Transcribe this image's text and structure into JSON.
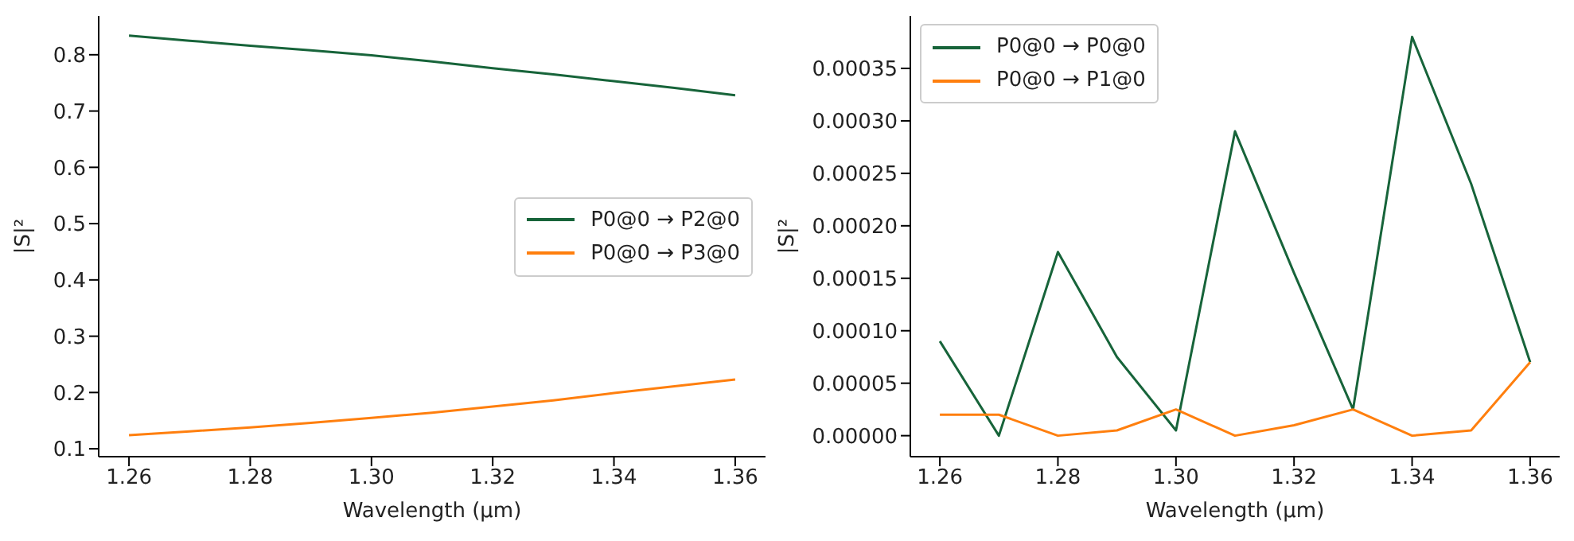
{
  "chart_data": [
    {
      "type": "line",
      "xlabel": "Wavelength (µm)",
      "ylabel": "|S|²",
      "x": [
        1.26,
        1.27,
        1.28,
        1.29,
        1.3,
        1.31,
        1.32,
        1.33,
        1.34,
        1.35,
        1.36
      ],
      "series": [
        {
          "name": "P0@0 → P2@0",
          "color": "#17643a",
          "values": [
            0.834,
            0.825,
            0.816,
            0.808,
            0.799,
            0.788,
            0.776,
            0.765,
            0.753,
            0.741,
            0.728
          ]
        },
        {
          "name": "P0@0 → P3@0",
          "color": "#ff7f0e",
          "values": [
            0.124,
            0.131,
            0.138,
            0.146,
            0.155,
            0.164,
            0.175,
            0.186,
            0.199,
            0.211,
            0.223
          ]
        }
      ],
      "xlim": [
        1.255,
        1.365
      ],
      "xticks": [
        {
          "value": 1.26,
          "label": "1.26"
        },
        {
          "value": 1.28,
          "label": "1.28"
        },
        {
          "value": 1.3,
          "label": "1.30"
        },
        {
          "value": 1.32,
          "label": "1.32"
        },
        {
          "value": 1.34,
          "label": "1.34"
        },
        {
          "value": 1.36,
          "label": "1.36"
        }
      ],
      "ylim": [
        0.086,
        0.869
      ],
      "yticks": [
        0.1,
        0.2,
        0.3,
        0.4,
        0.5,
        0.6,
        0.7,
        0.8
      ],
      "legend": "center right"
    },
    {
      "type": "line",
      "xlabel": "Wavelength (µm)",
      "ylabel": "|S|²",
      "x": [
        1.26,
        1.27,
        1.28,
        1.29,
        1.3,
        1.31,
        1.32,
        1.33,
        1.34,
        1.35,
        1.36
      ],
      "series": [
        {
          "name": "P0@0 → P0@0",
          "color": "#17643a",
          "values": [
            9e-05,
            0,
            0.000175,
            7.5e-05,
            5e-06,
            0.00029,
            0.000155,
            2.5e-05,
            0.00038,
            0.00024,
            7e-05
          ]
        },
        {
          "name": "P0@0 → P1@0",
          "color": "#ff7f0e",
          "values": [
            2e-05,
            2e-05,
            0,
            5e-06,
            2.5e-05,
            0,
            1e-05,
            2.5e-05,
            0,
            5e-06,
            7e-05
          ]
        }
      ],
      "xlim": [
        1.255,
        1.365
      ],
      "xticks": [
        {
          "value": 1.26,
          "label": "1.26"
        },
        {
          "value": 1.28,
          "label": "1.28"
        },
        {
          "value": 1.3,
          "label": "1.30"
        },
        {
          "value": 1.32,
          "label": "1.32"
        },
        {
          "value": 1.34,
          "label": "1.34"
        },
        {
          "value": 1.36,
          "label": "1.36"
        }
      ],
      "ylim": [
        -2e-05,
        0.0004
      ],
      "yticks": [
        {
          "value": 0,
          "label": "0.00000"
        },
        {
          "value": 5e-05,
          "label": "0.00005"
        },
        {
          "value": 0.0001,
          "label": "0.00010"
        },
        {
          "value": 0.00015,
          "label": "0.00015"
        },
        {
          "value": 0.0002,
          "label": "0.00020"
        },
        {
          "value": 0.00025,
          "label": "0.00025"
        },
        {
          "value": 0.0003,
          "label": "0.00030"
        },
        {
          "value": 0.00035,
          "label": "0.00035"
        }
      ],
      "legend": "top left"
    }
  ]
}
